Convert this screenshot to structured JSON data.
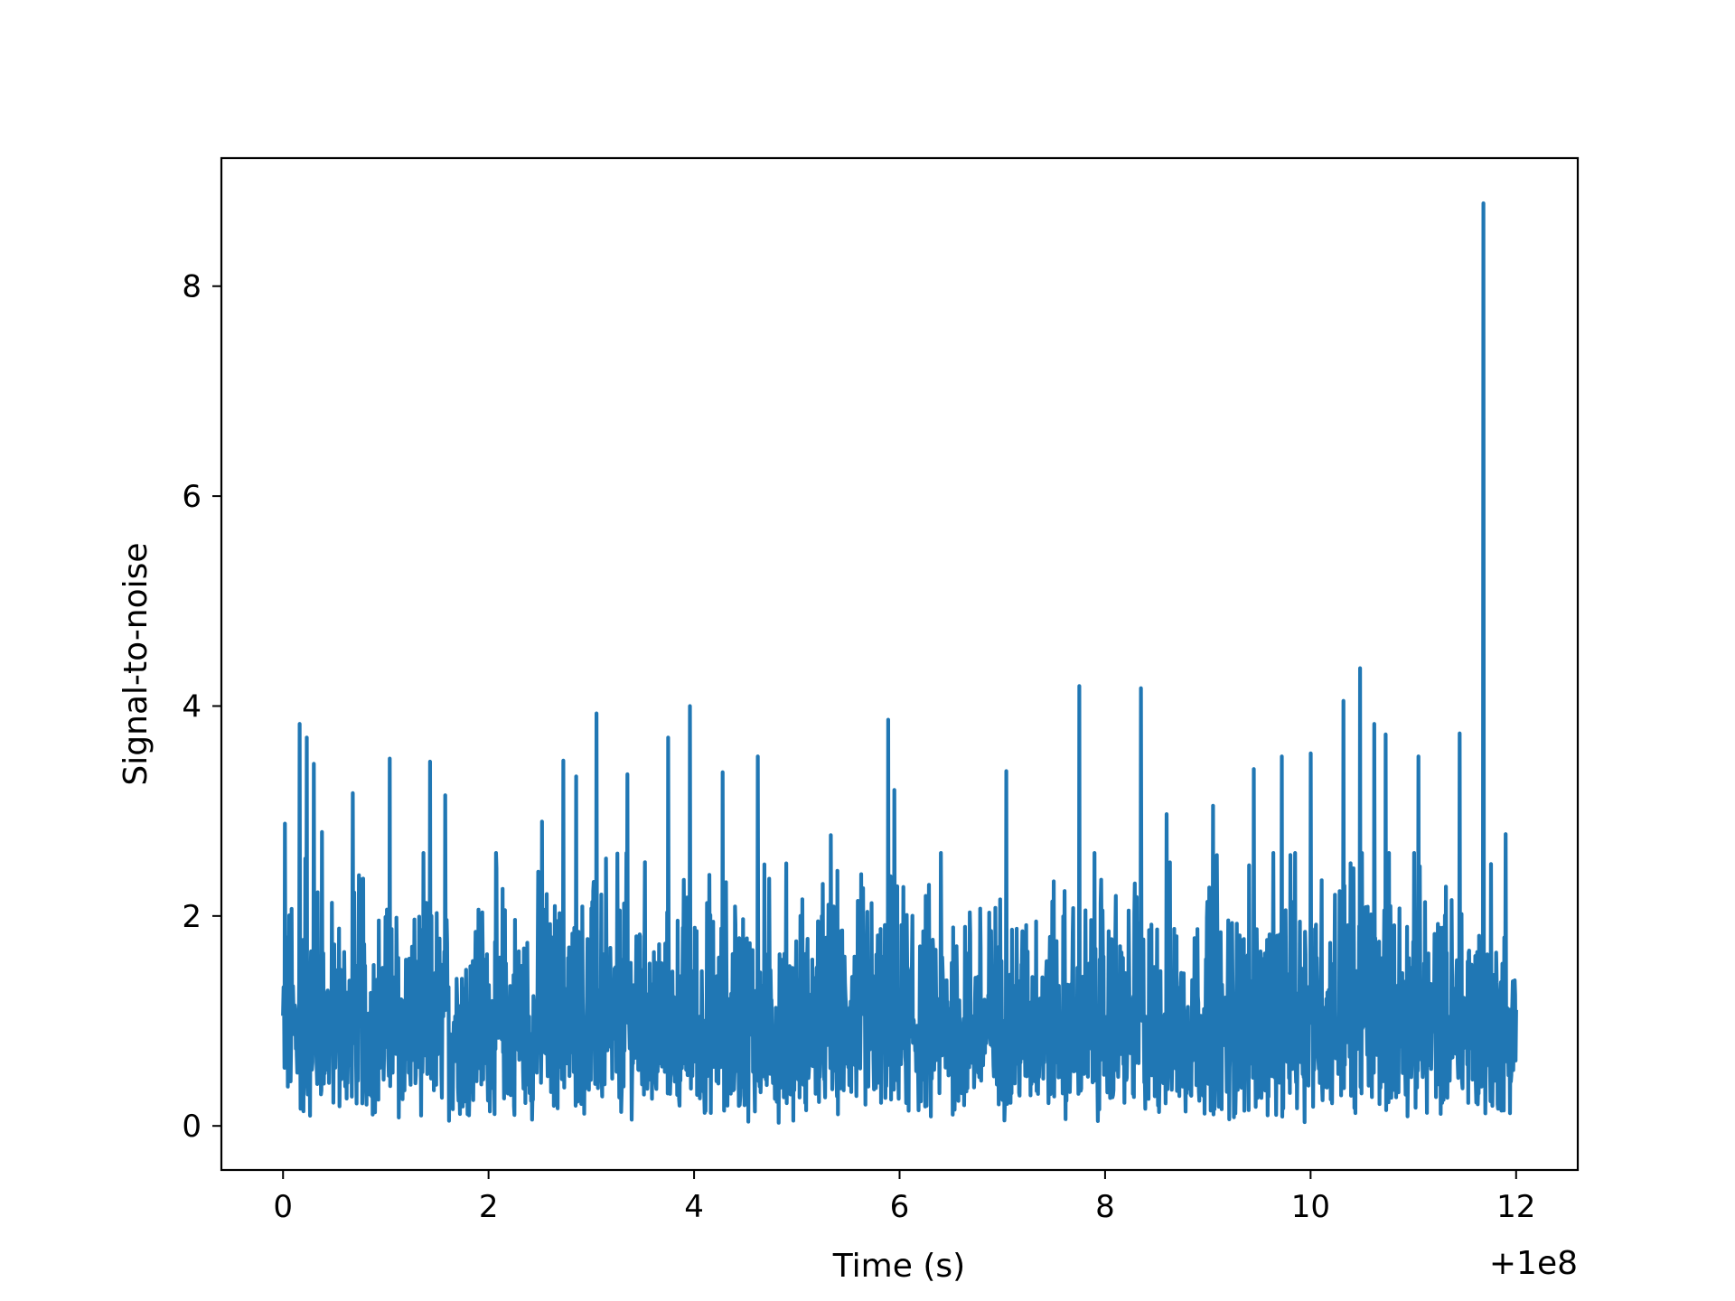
{
  "chart_data": {
    "type": "line",
    "title": "",
    "xlabel": "Time (s)",
    "ylabel": "Signal-to-noise",
    "x_offset_label": "+1e8",
    "xlim": [
      -0.6,
      12.6
    ],
    "ylim": [
      -0.42,
      9.22
    ],
    "xticks": [
      0,
      2,
      4,
      6,
      8,
      10,
      12
    ],
    "yticks": [
      0,
      2,
      4,
      6,
      8
    ],
    "xtick_labels": [
      "0",
      "2",
      "4",
      "6",
      "8",
      "10",
      "12"
    ],
    "ytick_labels": [
      "0",
      "2",
      "4",
      "6",
      "8"
    ],
    "grid": false,
    "legend": "none",
    "line_color": "#2077b4",
    "series": [
      {
        "x_range": [
          0,
          12
        ],
        "noise_floor": 0.0,
        "typical_band": [
          0.3,
          2.2
        ],
        "peaks": [
          {
            "x": 0.02,
            "y": 2.88
          },
          {
            "x": 0.16,
            "y": 3.83
          },
          {
            "x": 0.23,
            "y": 3.7
          },
          {
            "x": 0.3,
            "y": 3.45
          },
          {
            "x": 0.38,
            "y": 2.8
          },
          {
            "x": 0.68,
            "y": 3.17
          },
          {
            "x": 1.04,
            "y": 3.5
          },
          {
            "x": 1.43,
            "y": 3.47
          },
          {
            "x": 1.58,
            "y": 3.15
          },
          {
            "x": 2.52,
            "y": 2.9
          },
          {
            "x": 2.73,
            "y": 3.48
          },
          {
            "x": 2.85,
            "y": 3.33
          },
          {
            "x": 3.05,
            "y": 3.93
          },
          {
            "x": 3.35,
            "y": 3.35
          },
          {
            "x": 3.75,
            "y": 3.7
          },
          {
            "x": 3.96,
            "y": 4.0
          },
          {
            "x": 4.28,
            "y": 3.37
          },
          {
            "x": 4.62,
            "y": 3.52
          },
          {
            "x": 5.33,
            "y": 2.77
          },
          {
            "x": 5.89,
            "y": 3.87
          },
          {
            "x": 5.95,
            "y": 3.2
          },
          {
            "x": 7.04,
            "y": 3.38
          },
          {
            "x": 7.75,
            "y": 4.19
          },
          {
            "x": 8.35,
            "y": 4.17
          },
          {
            "x": 8.6,
            "y": 2.97
          },
          {
            "x": 9.05,
            "y": 3.05
          },
          {
            "x": 9.45,
            "y": 3.4
          },
          {
            "x": 9.72,
            "y": 3.52
          },
          {
            "x": 10.0,
            "y": 3.55
          },
          {
            "x": 10.32,
            "y": 4.05
          },
          {
            "x": 10.48,
            "y": 4.36
          },
          {
            "x": 10.62,
            "y": 3.83
          },
          {
            "x": 10.73,
            "y": 3.73
          },
          {
            "x": 11.05,
            "y": 3.52
          },
          {
            "x": 11.45,
            "y": 3.74
          },
          {
            "x": 11.68,
            "y": 8.79
          },
          {
            "x": 11.9,
            "y": 2.78
          }
        ]
      }
    ]
  }
}
